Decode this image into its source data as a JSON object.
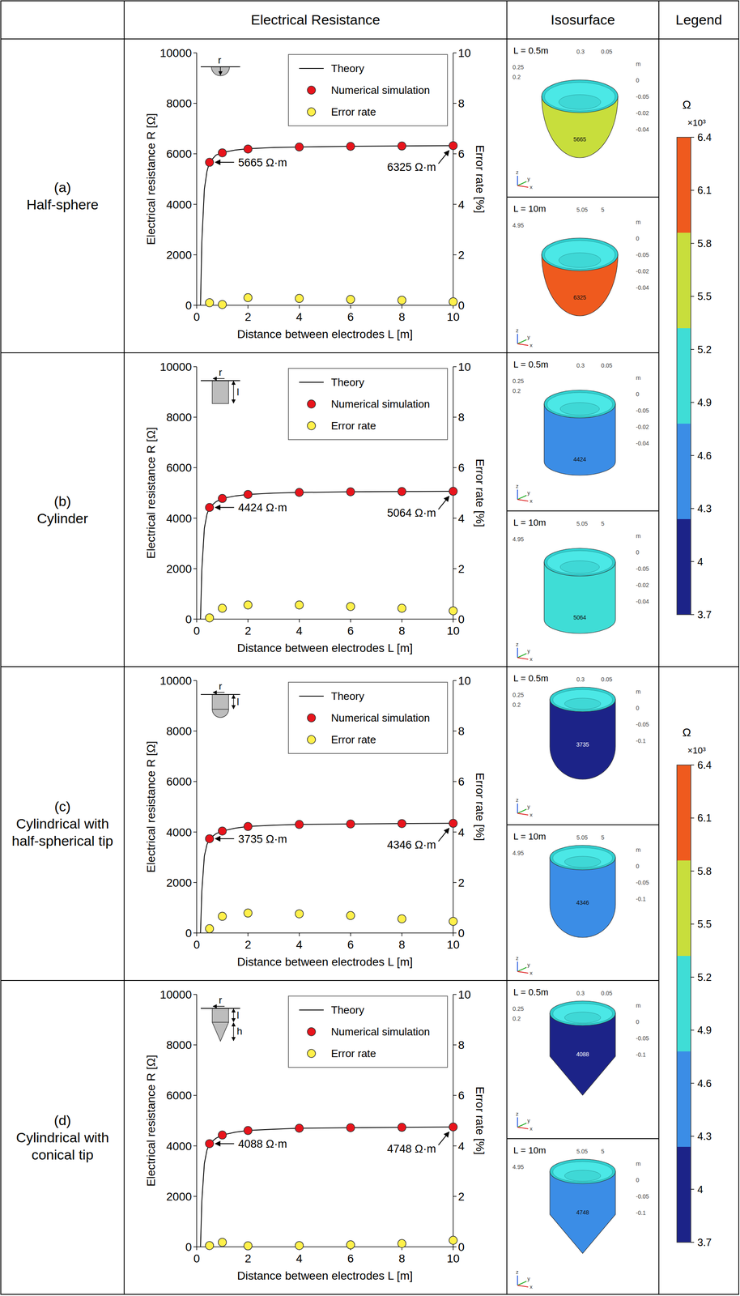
{
  "table": {
    "headers": [
      "Electrical Resistance",
      "Isosurface",
      "Legend"
    ],
    "rows": [
      {
        "letter": "(a)",
        "name": "Half-sphere"
      },
      {
        "letter": "(b)",
        "name": "Cylinder"
      },
      {
        "letter": "(c)",
        "name": "Cylindrical with half-spherical tip"
      },
      {
        "letter": "(d)",
        "name": "Cylindrical with conical tip"
      }
    ]
  },
  "chart_data": [
    {
      "type": "line",
      "x_label": "Distance between electrodes L [m]",
      "y_label": "Electrical resistance R [Ω]",
      "y2_label": "Error rate [%]",
      "xlim": [
        0,
        10
      ],
      "xticks": [
        0,
        2,
        4,
        6,
        8,
        10
      ],
      "ylim": [
        0,
        10000
      ],
      "yticks": [
        0,
        2000,
        4000,
        6000,
        8000,
        10000
      ],
      "y2lim": [
        0,
        10
      ],
      "y2ticks": [
        0,
        2,
        4,
        6,
        8,
        10
      ],
      "legend": "upper right",
      "icon_labels": [
        "r"
      ],
      "series": [
        {
          "name": "Theory",
          "type": "line",
          "color": "#000000",
          "x": [
            0.15,
            0.2,
            0.3,
            0.4,
            0.5,
            0.75,
            1,
            1.5,
            2,
            3,
            4,
            6,
            8,
            10
          ],
          "values": [
            0,
            2500,
            4600,
            5300,
            5665,
            5950,
            6050,
            6150,
            6200,
            6250,
            6270,
            6300,
            6310,
            6325
          ]
        },
        {
          "name": "Numerical simulation",
          "type": "scatter",
          "marker": "circle",
          "color": "#e8141c",
          "x": [
            0.5,
            1,
            2,
            4,
            6,
            8,
            10
          ],
          "values": [
            5665,
            6040,
            6190,
            6270,
            6295,
            6310,
            6325
          ]
        },
        {
          "name": "Error rate",
          "type": "scatter",
          "marker": "circle",
          "color": "#fff04a",
          "axis": "y2",
          "x": [
            0.5,
            1,
            2,
            4,
            6,
            8,
            10
          ],
          "values": [
            0.1,
            0.03,
            0.3,
            0.27,
            0.23,
            0.2,
            0.14
          ]
        }
      ],
      "annotations": [
        {
          "text": "5665 Ω·m",
          "x": 0.5,
          "y": 5665
        },
        {
          "text": "6325 Ω·m",
          "x": 10,
          "y": 6325
        }
      ]
    },
    {
      "type": "line",
      "x_label": "Distance between electrodes L [m]",
      "y_label": "Electrical resistance R [Ω]",
      "y2_label": "Error rate [%]",
      "xlim": [
        0,
        10
      ],
      "xticks": [
        0,
        2,
        4,
        6,
        8,
        10
      ],
      "ylim": [
        0,
        10000
      ],
      "yticks": [
        0,
        2000,
        4000,
        6000,
        8000,
        10000
      ],
      "y2lim": [
        0,
        10
      ],
      "y2ticks": [
        0,
        2,
        4,
        6,
        8,
        10
      ],
      "legend": "upper right",
      "icon_labels": [
        "r",
        "l"
      ],
      "series": [
        {
          "name": "Theory",
          "type": "line",
          "color": "#000000",
          "x": [
            0.15,
            0.2,
            0.3,
            0.4,
            0.5,
            0.75,
            1,
            1.5,
            2,
            3,
            4,
            6,
            8,
            10
          ],
          "values": [
            0,
            1950,
            3600,
            4150,
            4424,
            4650,
            4780,
            4880,
            4940,
            4990,
            5020,
            5045,
            5055,
            5064
          ]
        },
        {
          "name": "Numerical simulation",
          "type": "scatter",
          "marker": "circle",
          "color": "#e8141c",
          "x": [
            0.5,
            1,
            2,
            4,
            6,
            8,
            10
          ],
          "values": [
            4424,
            4780,
            4940,
            5020,
            5045,
            5055,
            5064
          ]
        },
        {
          "name": "Error rate",
          "type": "scatter",
          "marker": "circle",
          "color": "#fff04a",
          "axis": "y2",
          "x": [
            0.5,
            1,
            2,
            4,
            6,
            8,
            10
          ],
          "values": [
            0.05,
            0.43,
            0.56,
            0.56,
            0.5,
            0.43,
            0.33
          ]
        }
      ],
      "annotations": [
        {
          "text": "4424 Ω·m",
          "x": 0.5,
          "y": 4424
        },
        {
          "text": "5064 Ω·m",
          "x": 10,
          "y": 5064
        }
      ]
    },
    {
      "type": "line",
      "x_label": "Distance between electrodes L [m]",
      "y_label": "Electrical resistance R [Ω]",
      "y2_label": "Error rate [%]",
      "xlim": [
        0,
        10
      ],
      "xticks": [
        0,
        2,
        4,
        6,
        8,
        10
      ],
      "ylim": [
        0,
        10000
      ],
      "yticks": [
        0,
        2000,
        4000,
        6000,
        8000,
        10000
      ],
      "y2lim": [
        0,
        10
      ],
      "y2ticks": [
        0,
        2,
        4,
        6,
        8,
        10
      ],
      "legend": "upper right",
      "icon_labels": [
        "r",
        "l"
      ],
      "series": [
        {
          "name": "Theory",
          "type": "line",
          "color": "#000000",
          "x": [
            0.15,
            0.2,
            0.3,
            0.4,
            0.5,
            0.75,
            1,
            1.5,
            2,
            3,
            4,
            6,
            8,
            10
          ],
          "values": [
            0,
            1650,
            3050,
            3500,
            3735,
            3930,
            4040,
            4150,
            4220,
            4270,
            4300,
            4320,
            4335,
            4346
          ]
        },
        {
          "name": "Numerical simulation",
          "type": "scatter",
          "marker": "circle",
          "color": "#e8141c",
          "x": [
            0.5,
            1,
            2,
            4,
            6,
            8,
            10
          ],
          "values": [
            3735,
            4040,
            4220,
            4300,
            4320,
            4335,
            4346
          ]
        },
        {
          "name": "Error rate",
          "type": "scatter",
          "marker": "circle",
          "color": "#fff04a",
          "axis": "y2",
          "x": [
            0.5,
            1,
            2,
            4,
            6,
            8,
            10
          ],
          "values": [
            0.17,
            0.66,
            0.79,
            0.76,
            0.69,
            0.56,
            0.46
          ]
        }
      ],
      "annotations": [
        {
          "text": "3735 Ω·m",
          "x": 0.5,
          "y": 3735
        },
        {
          "text": "4346 Ω·m",
          "x": 10,
          "y": 4346
        }
      ]
    },
    {
      "type": "line",
      "x_label": "Distance between electrodes L [m]",
      "y_label": "Electrical resistance R [Ω]",
      "y2_label": "Error rate [%]",
      "xlim": [
        0,
        10
      ],
      "xticks": [
        0,
        2,
        4,
        6,
        8,
        10
      ],
      "ylim": [
        0,
        10000
      ],
      "yticks": [
        0,
        2000,
        4000,
        6000,
        8000,
        10000
      ],
      "y2lim": [
        0,
        10
      ],
      "y2ticks": [
        0,
        2,
        4,
        6,
        8,
        10
      ],
      "legend": "upper right",
      "icon_labels": [
        "r",
        "l",
        "h"
      ],
      "series": [
        {
          "name": "Theory",
          "type": "line",
          "color": "#000000",
          "x": [
            0.15,
            0.2,
            0.3,
            0.4,
            0.5,
            0.75,
            1,
            1.5,
            2,
            3,
            4,
            6,
            8,
            10
          ],
          "values": [
            0,
            1800,
            3300,
            3830,
            4088,
            4300,
            4430,
            4540,
            4610,
            4660,
            4700,
            4720,
            4735,
            4748
          ]
        },
        {
          "name": "Numerical simulation",
          "type": "scatter",
          "marker": "circle",
          "color": "#e8141c",
          "x": [
            0.5,
            1,
            2,
            4,
            6,
            8,
            10
          ],
          "values": [
            4088,
            4430,
            4610,
            4700,
            4720,
            4735,
            4748
          ]
        },
        {
          "name": "Error rate",
          "type": "scatter",
          "marker": "circle",
          "color": "#fff04a",
          "axis": "y2",
          "x": [
            0.5,
            1,
            2,
            4,
            6,
            8,
            10
          ],
          "values": [
            0.05,
            0.18,
            0.04,
            0.05,
            0.08,
            0.13,
            0.26
          ]
        }
      ],
      "annotations": [
        {
          "text": "4088 Ω·m",
          "x": 0.5,
          "y": 4088
        },
        {
          "text": "4748 Ω·m",
          "x": 10,
          "y": 4748
        }
      ]
    }
  ],
  "isosurfaces": [
    [
      {
        "label": "L = 0.5m",
        "value": 5665,
        "scale_top": [
          "0.3",
          "0.05"
        ],
        "scale_left": [
          "0.25",
          "0.2"
        ],
        "scale_right": [
          "m",
          "0",
          "-0.05",
          "-0.02",
          "-0.04"
        ]
      },
      {
        "label": "L = 10m",
        "value": 6325,
        "scale_top": [
          "5.05",
          "5"
        ],
        "scale_left": [
          "4.95"
        ],
        "scale_right": [
          "m",
          "0",
          "-0.05",
          "-0.02",
          "-0.04"
        ]
      }
    ],
    [
      {
        "label": "L = 0.5m",
        "value": 4424,
        "scale_top": [
          "0.3",
          "0.05"
        ],
        "scale_left": [
          "0.25",
          "0.2"
        ],
        "scale_right": [
          "m",
          "0",
          "-0.05",
          "-0.02",
          "-0.04"
        ]
      },
      {
        "label": "L = 10m",
        "value": 5064,
        "scale_top": [
          "5.05",
          "5"
        ],
        "scale_left": [
          "4.95"
        ],
        "scale_right": [
          "m",
          "0",
          "-0.05",
          "-0.02",
          "-0.04"
        ]
      }
    ],
    [
      {
        "label": "L = 0.5m",
        "value": 3735,
        "scale_top": [
          "0.3",
          "0.05"
        ],
        "scale_left": [
          "0.25",
          "0.2"
        ],
        "scale_right": [
          "m",
          "0",
          "-0.05",
          "-0.1"
        ]
      },
      {
        "label": "L = 10m",
        "value": 4346,
        "scale_top": [
          "5.05",
          "5"
        ],
        "scale_left": [
          "4.95"
        ],
        "scale_right": [
          "m",
          "0",
          "-0.05",
          "-0.1"
        ]
      }
    ],
    [
      {
        "label": "L = 0.5m",
        "value": 4088,
        "scale_top": [
          "0.3",
          "0.05"
        ],
        "scale_left": [
          "0.25",
          "0.2"
        ],
        "scale_right": [
          "m",
          "0",
          "-0.05",
          "-0.1"
        ]
      },
      {
        "label": "L = 10m",
        "value": 4748,
        "scale_top": [
          "5.05",
          "5"
        ],
        "scale_left": [
          "4.95"
        ],
        "scale_right": [
          "m",
          "0",
          "-0.05",
          "-0.1"
        ]
      }
    ]
  ],
  "triad": [
    "z",
    "y",
    "x"
  ],
  "colorbars": [
    {
      "unit": "Ω",
      "multiplier": "×10³",
      "lim": [
        3700,
        6400
      ],
      "ticks": [
        {
          "value": 6400,
          "label": "6.4"
        },
        {
          "value": 6100,
          "label": "6.1"
        },
        {
          "value": 5800,
          "label": "5.8"
        },
        {
          "value": 5500,
          "label": "5.5"
        },
        {
          "value": 5200,
          "label": "5.2"
        },
        {
          "value": 4900,
          "label": "4.9"
        },
        {
          "value": 4600,
          "label": "4.6"
        },
        {
          "value": 4300,
          "label": "4.3"
        },
        {
          "value": 4000,
          "label": "4"
        },
        {
          "value": 3700,
          "label": "3.7"
        }
      ],
      "bands": [
        {
          "from": 3700,
          "to": 4240,
          "color": "#1c2388"
        },
        {
          "from": 4240,
          "to": 4780,
          "color": "#3b8de6"
        },
        {
          "from": 4780,
          "to": 5320,
          "color": "#3fddd6"
        },
        {
          "from": 5320,
          "to": 5860,
          "color": "#c8de3c"
        },
        {
          "from": 5860,
          "to": 6400,
          "color": "#ef5a1e"
        }
      ]
    },
    {
      "unit": "Ω",
      "multiplier": "×10³",
      "lim": [
        3700,
        6400
      ],
      "ticks": [
        {
          "value": 6400,
          "label": "6.4"
        },
        {
          "value": 6100,
          "label": "6.1"
        },
        {
          "value": 5800,
          "label": "5.8"
        },
        {
          "value": 5500,
          "label": "5.5"
        },
        {
          "value": 5200,
          "label": "5.2"
        },
        {
          "value": 4900,
          "label": "4.9"
        },
        {
          "value": 4600,
          "label": "4.6"
        },
        {
          "value": 4300,
          "label": "4.3"
        },
        {
          "value": 4000,
          "label": "4"
        },
        {
          "value": 3700,
          "label": "3.7"
        }
      ],
      "bands": [
        {
          "from": 3700,
          "to": 4240,
          "color": "#1c2388"
        },
        {
          "from": 4240,
          "to": 4780,
          "color": "#3b8de6"
        },
        {
          "from": 4780,
          "to": 5320,
          "color": "#3fddd6"
        },
        {
          "from": 5320,
          "to": 5860,
          "color": "#c8de3c"
        },
        {
          "from": 5860,
          "to": 6400,
          "color": "#ef5a1e"
        }
      ]
    }
  ]
}
